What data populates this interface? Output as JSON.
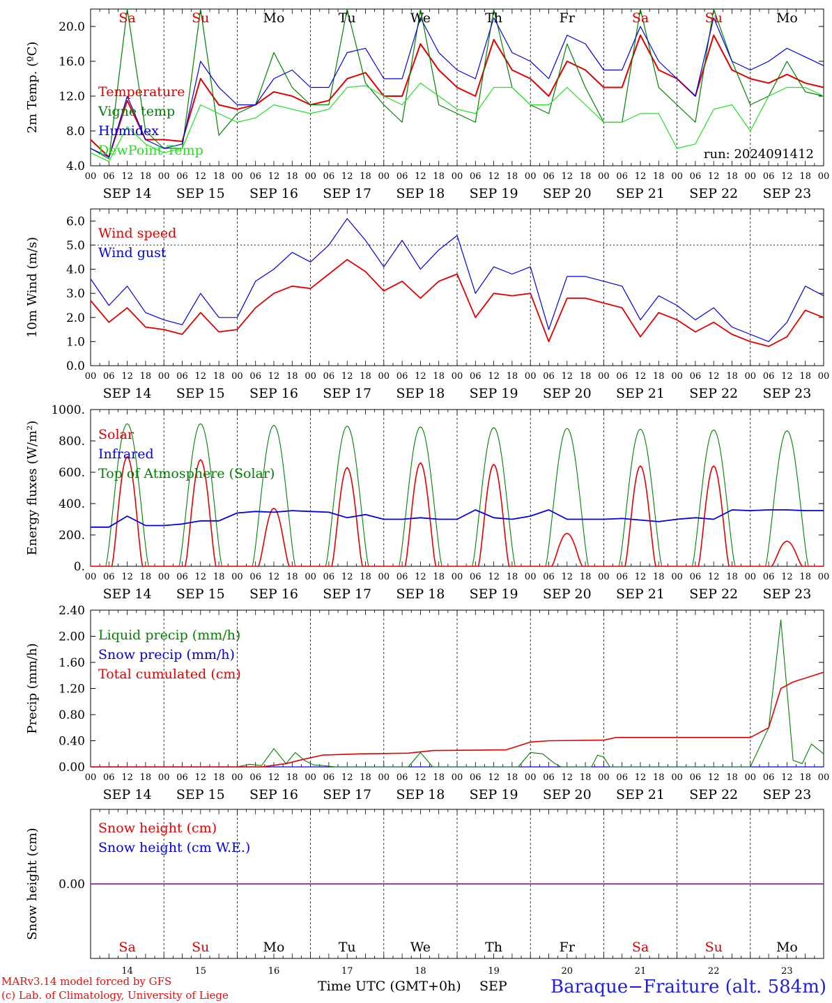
{
  "footer": {
    "credit_line1": "MARv3.14 model forced by GFS",
    "credit_line2": "(c) Lab. of Climatology, University of Liege",
    "x_title": "Time UTC (GMT+0h)",
    "x_month": "SEP",
    "station": "Baraque−Fraiture (alt. 584m)"
  },
  "colors": {
    "red": "#e00000",
    "green": "#008000",
    "blue": "#0000e0",
    "lightgreen": "#20e020",
    "purple": "#800080",
    "weekend": "#e00000"
  },
  "days": {
    "names": [
      "Sa",
      "Su",
      "Mo",
      "Tu",
      "We",
      "Th",
      "Fr",
      "Sa",
      "Su",
      "Mo"
    ],
    "weekend": [
      true,
      true,
      false,
      false,
      false,
      false,
      false,
      true,
      true,
      false
    ],
    "date_labels": [
      "SEP 14",
      "SEP 15",
      "SEP 16",
      "SEP 17",
      "SEP 18",
      "SEP 19",
      "SEP 20",
      "SEP 21",
      "SEP 22",
      "SEP 23"
    ],
    "day_numbers": [
      "14",
      "15",
      "16",
      "17",
      "18",
      "19",
      "20",
      "21",
      "22",
      "23"
    ],
    "hour_ticks": [
      "00",
      "06",
      "12",
      "18"
    ],
    "final_tick": "00"
  },
  "chart_data": [
    {
      "type": "line",
      "ylabel": "2m Temp. (ºC)",
      "ylim": [
        4,
        22
      ],
      "yticks": [
        "4.0",
        "8.0",
        "12.0",
        "16.0",
        "20.0"
      ],
      "annotation": "run: 2024091412",
      "x_unit": "hours since SEP 14 00 UTC",
      "series": [
        {
          "name": "Temperature",
          "color": "red",
          "x": [
            0,
            6,
            12,
            18,
            24,
            30,
            36,
            42,
            48,
            54,
            60,
            66,
            72,
            78,
            84,
            90,
            96,
            102,
            108,
            114,
            120,
            126,
            132,
            138,
            144,
            150,
            156,
            162,
            168,
            174,
            180,
            186,
            192,
            198,
            204,
            210,
            216,
            222,
            228,
            234,
            240
          ],
          "y": [
            7,
            5,
            11.5,
            7,
            7,
            6.8,
            14,
            11,
            10.5,
            11,
            12.5,
            12,
            11,
            11.5,
            14,
            14.7,
            12,
            12,
            18,
            15,
            13,
            12,
            18.5,
            15,
            14,
            12,
            16,
            15,
            13,
            13,
            19,
            15,
            14,
            12,
            19,
            15,
            14,
            13.5,
            14.5,
            13.5,
            13
          ]
        },
        {
          "name": "Vigne temp",
          "color": "green",
          "x": [
            0,
            6,
            12,
            18,
            24,
            30,
            36,
            42,
            48,
            54,
            60,
            66,
            72,
            78,
            84,
            90,
            96,
            102,
            108,
            114,
            120,
            126,
            132,
            138,
            144,
            150,
            156,
            162,
            168,
            174,
            180,
            186,
            192,
            198,
            204,
            210,
            216,
            222,
            228,
            234,
            240
          ],
          "y": [
            6,
            4.8,
            22,
            8,
            6,
            6,
            22,
            7.5,
            10,
            11,
            17,
            13,
            11,
            11,
            22,
            13.5,
            11,
            9,
            22,
            11,
            10,
            9,
            22,
            13,
            11,
            10,
            18,
            13,
            9,
            9,
            22,
            13,
            11,
            9,
            22,
            16,
            11,
            12,
            16,
            12.5,
            12
          ]
        },
        {
          "name": "Humidex",
          "color": "blue",
          "x": [
            0,
            6,
            12,
            18,
            24,
            30,
            36,
            42,
            48,
            54,
            60,
            66,
            72,
            78,
            84,
            90,
            96,
            102,
            108,
            114,
            120,
            126,
            132,
            138,
            144,
            150,
            156,
            162,
            168,
            174,
            180,
            186,
            192,
            198,
            204,
            210,
            216,
            222,
            228,
            234,
            240
          ],
          "y": [
            6,
            5,
            12,
            7,
            6,
            6.5,
            16,
            13,
            11,
            11,
            14,
            15,
            13,
            13,
            17,
            17.5,
            14,
            14,
            21,
            17,
            15,
            14,
            21,
            17,
            16,
            14,
            19,
            18,
            15,
            15,
            20,
            16,
            14,
            12,
            21,
            16,
            15,
            16,
            17.5,
            16.5,
            15.5
          ]
        },
        {
          "name": "DewPoint Temp",
          "color": "lightgreen",
          "x": [
            0,
            6,
            12,
            18,
            24,
            30,
            36,
            42,
            48,
            54,
            60,
            66,
            72,
            78,
            84,
            90,
            96,
            102,
            108,
            114,
            120,
            126,
            132,
            138,
            144,
            150,
            156,
            162,
            168,
            174,
            180,
            186,
            192,
            198,
            204,
            210,
            216,
            222,
            228,
            234,
            240
          ],
          "y": [
            5.5,
            4.5,
            8.5,
            6.5,
            5.5,
            6,
            11,
            10,
            9,
            9.5,
            11,
            10.5,
            10,
            10.5,
            13,
            13.2,
            12,
            11,
            13.5,
            12,
            10.5,
            10,
            13,
            13,
            11,
            11,
            13,
            11,
            9,
            9,
            10,
            10,
            6,
            6.5,
            10.5,
            11,
            8,
            12,
            13,
            13,
            12
          ]
        }
      ]
    },
    {
      "type": "line",
      "ylabel": "10m Wind (m/s)",
      "ylim": [
        0,
        6.5
      ],
      "yticks": [
        "0.0",
        "1.0",
        "2.0",
        "3.0",
        "4.0",
        "5.0",
        "6.0"
      ],
      "hline": 5.0,
      "x_unit": "hours since SEP 14 00 UTC",
      "series": [
        {
          "name": "Wind speed",
          "color": "red",
          "x": [
            0,
            6,
            12,
            18,
            24,
            30,
            36,
            42,
            48,
            54,
            60,
            66,
            72,
            78,
            84,
            90,
            96,
            102,
            108,
            114,
            120,
            126,
            132,
            138,
            144,
            150,
            156,
            162,
            168,
            174,
            180,
            186,
            192,
            198,
            204,
            210,
            216,
            222,
            228,
            234,
            240
          ],
          "y": [
            2.7,
            1.8,
            2.4,
            1.6,
            1.5,
            1.3,
            2.2,
            1.4,
            1.5,
            2.4,
            3.0,
            3.3,
            3.2,
            3.8,
            4.4,
            3.9,
            3.1,
            3.5,
            2.8,
            3.5,
            3.8,
            2.0,
            3.0,
            2.9,
            3.0,
            1.0,
            2.8,
            2.8,
            2.6,
            2.4,
            1.2,
            2.2,
            1.9,
            1.4,
            1.8,
            1.3,
            1.0,
            0.8,
            1.2,
            2.3,
            2.0
          ]
        },
        {
          "name": "Wind gust",
          "color": "blue",
          "x": [
            0,
            6,
            12,
            18,
            24,
            30,
            36,
            42,
            48,
            54,
            60,
            66,
            72,
            78,
            84,
            90,
            96,
            102,
            108,
            114,
            120,
            126,
            132,
            138,
            144,
            150,
            156,
            162,
            168,
            174,
            180,
            186,
            192,
            198,
            204,
            210,
            216,
            222,
            228,
            234,
            240
          ],
          "y": [
            3.6,
            2.5,
            3.3,
            2.2,
            1.9,
            1.7,
            3.0,
            2.0,
            2.0,
            3.5,
            4.0,
            4.7,
            4.3,
            5.0,
            6.1,
            5.2,
            4.1,
            5.2,
            4.0,
            4.8,
            5.4,
            3.0,
            4.1,
            3.8,
            4.1,
            1.5,
            3.7,
            3.7,
            3.5,
            3.3,
            1.9,
            2.9,
            2.5,
            1.9,
            2.4,
            1.6,
            1.3,
            1.0,
            1.8,
            3.3,
            2.9
          ]
        }
      ]
    },
    {
      "type": "line",
      "ylabel": "Energy fluxes (W/m²)",
      "ylim": [
        0,
        1000
      ],
      "yticks": [
        "0.",
        "200.",
        "400.",
        "600.",
        "800.",
        "1000."
      ],
      "x_unit": "hours since SEP 14 00 UTC",
      "series": [
        {
          "name": "Solar",
          "color": "red",
          "day_peaks": [
            700,
            680,
            370,
            630,
            660,
            650,
            210,
            640,
            640,
            160
          ]
        },
        {
          "name": "Infrared",
          "color": "blue",
          "x": [
            0,
            6,
            12,
            18,
            24,
            30,
            36,
            42,
            48,
            54,
            60,
            66,
            72,
            78,
            84,
            90,
            96,
            102,
            108,
            114,
            120,
            126,
            132,
            138,
            144,
            150,
            156,
            162,
            168,
            174,
            180,
            186,
            192,
            198,
            204,
            210,
            216,
            222,
            228,
            234,
            240
          ],
          "y": [
            250,
            250,
            320,
            260,
            260,
            270,
            290,
            290,
            340,
            350,
            345,
            355,
            350,
            345,
            310,
            330,
            300,
            300,
            310,
            300,
            300,
            360,
            310,
            300,
            320,
            360,
            300,
            300,
            300,
            305,
            295,
            285,
            300,
            310,
            300,
            360,
            355,
            360,
            360,
            355,
            355
          ]
        },
        {
          "name": "Top of Atmosphere (Solar)",
          "color": "green",
          "day_peaks": [
            910,
            910,
            900,
            895,
            890,
            885,
            880,
            875,
            870,
            865
          ]
        }
      ]
    },
    {
      "type": "line",
      "ylabel": "Precip (mm/h)",
      "ylim": [
        0,
        2.4
      ],
      "yticks": [
        "0.00",
        "0.40",
        "0.80",
        "1.20",
        "1.60",
        "2.00",
        "2.40"
      ],
      "x_unit": "hours since SEP 14 00 UTC",
      "series": [
        {
          "name": "Liquid precip (mm/h)",
          "color": "green",
          "x": [
            0,
            48,
            52,
            56,
            60,
            64,
            67,
            70,
            73,
            76,
            80,
            84,
            90,
            104,
            108,
            112,
            140,
            144,
            148,
            152,
            154,
            164,
            166,
            168,
            170,
            216,
            222,
            226,
            230,
            233,
            236,
            240
          ],
          "y": [
            0,
            0,
            0.04,
            0.02,
            0.28,
            0.05,
            0.22,
            0.1,
            0.03,
            0.02,
            0,
            0,
            0,
            0,
            0.22,
            0,
            0,
            0.22,
            0.2,
            0.05,
            0,
            0,
            0.18,
            0.15,
            0,
            0,
            0.6,
            2.25,
            0.1,
            0.05,
            0.35,
            0.2
          ]
        },
        {
          "name": "Snow precip (mm/h)",
          "color": "blue",
          "x": [
            0,
            240
          ],
          "y": [
            0,
            0
          ]
        },
        {
          "name": "Total cumulated (cm)",
          "color": "red",
          "x": [
            0,
            56,
            64,
            70,
            76,
            88,
            104,
            112,
            136,
            144,
            150,
            168,
            172,
            216,
            222,
            226,
            230,
            240
          ],
          "y": [
            0,
            0,
            0.05,
            0.12,
            0.18,
            0.2,
            0.21,
            0.25,
            0.26,
            0.38,
            0.4,
            0.41,
            0.45,
            0.45,
            0.6,
            1.2,
            1.3,
            1.45
          ]
        }
      ]
    },
    {
      "type": "line",
      "ylabel": "Snow height (cm)",
      "ylim": [
        -1,
        1
      ],
      "yticks": [
        "0.00"
      ],
      "x_unit": "hours since SEP 14 00 UTC",
      "series": [
        {
          "name": "Snow height (cm)",
          "color": "red",
          "x": [
            0,
            240
          ],
          "y": [
            0,
            0
          ]
        },
        {
          "name": "Snow height (cm W.E.)",
          "color": "blue",
          "x": [
            0,
            240
          ],
          "y": [
            0,
            0
          ]
        }
      ]
    }
  ]
}
